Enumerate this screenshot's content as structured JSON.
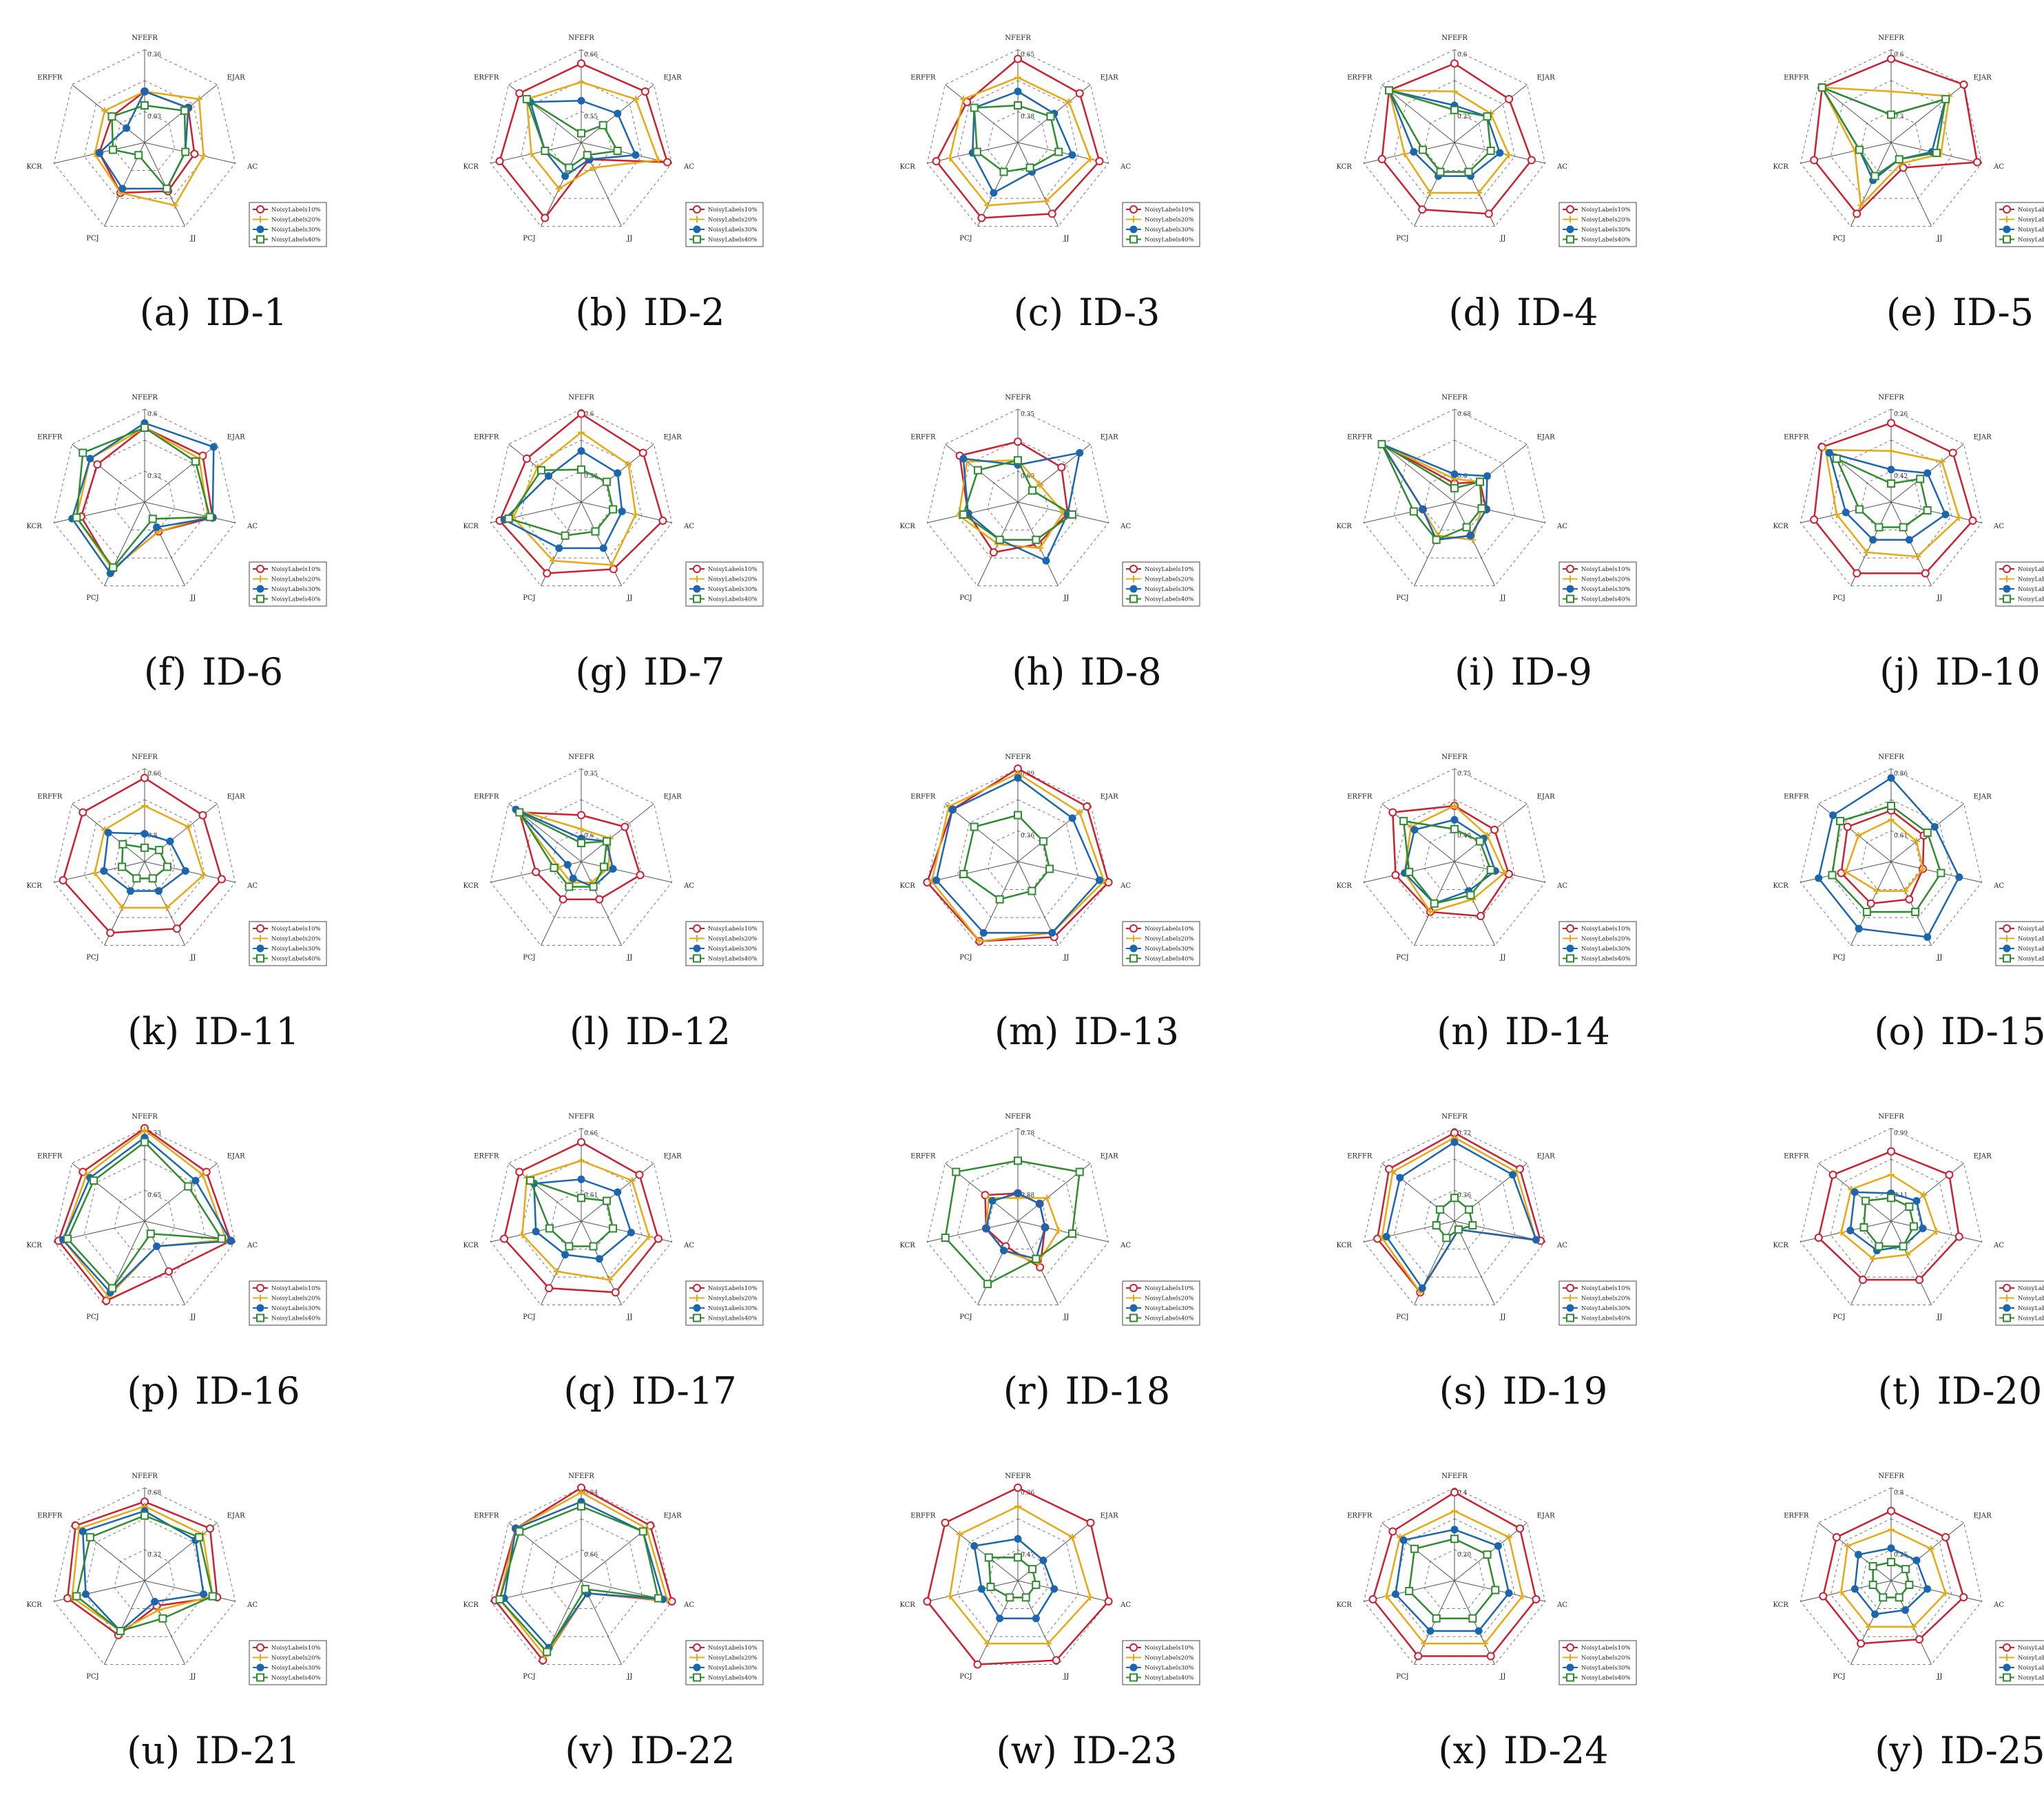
{
  "axes": [
    "NFEFR",
    "EJAR",
    "AC",
    "JJ",
    "PCJ",
    "KCR",
    "ERFFR"
  ],
  "legend": [
    "NoisyLabels10%",
    "NoisyLabels20%",
    "NoisyLabels30%",
    "NoisyLabels40%"
  ],
  "colors": [
    "#cc1f2f",
    "#e8a812",
    "#1a66b0",
    "#2e8b2e"
  ],
  "markers": [
    "circle-open",
    "plus",
    "circle-filled",
    "square-open"
  ],
  "chart_data": [
    {
      "type": "radar",
      "letter": "(a)",
      "id": "ID-1",
      "scale": [
        "0.36",
        "0.03"
      ],
      "series": [
        [
          0.55,
          0.6,
          0.55,
          0.58,
          0.6,
          0.5,
          0.45
        ],
        [
          0.55,
          0.75,
          0.65,
          0.75,
          0.6,
          0.55,
          0.55
        ],
        [
          0.55,
          0.6,
          0.45,
          0.55,
          0.55,
          0.5,
          0.25
        ],
        [
          0.4,
          0.55,
          0.45,
          0.55,
          0.15,
          0.35,
          0.45
        ]
      ]
    },
    {
      "type": "radar",
      "letter": "(b)",
      "id": "ID-2",
      "scale": [
        "0.66",
        "0.55"
      ],
      "series": [
        [
          0.85,
          0.88,
          0.95,
          0.2,
          0.9,
          0.9,
          0.85
        ],
        [
          0.65,
          0.75,
          0.85,
          0.3,
          0.55,
          0.55,
          0.75
        ],
        [
          0.45,
          0.5,
          0.6,
          0.2,
          0.4,
          0.4,
          0.7
        ],
        [
          0.1,
          0.3,
          0.4,
          0.15,
          0.3,
          0.4,
          0.75
        ]
      ]
    },
    {
      "type": "radar",
      "letter": "(c)",
      "id": "ID-3",
      "scale": [
        "0.65",
        "0.38"
      ],
      "series": [
        [
          0.9,
          0.85,
          0.9,
          0.85,
          0.9,
          0.9,
          0.7
        ],
        [
          0.7,
          0.7,
          0.8,
          0.7,
          0.75,
          0.75,
          0.75
        ],
        [
          0.55,
          0.5,
          0.6,
          0.35,
          0.6,
          0.5,
          0.6
        ],
        [
          0.4,
          0.45,
          0.45,
          0.3,
          0.35,
          0.45,
          0.6
        ]
      ]
    },
    {
      "type": "radar",
      "letter": "(d)",
      "id": "ID-4",
      "scale": [
        "0.6",
        "0.25"
      ],
      "series": [
        [
          0.85,
          0.75,
          0.85,
          0.85,
          0.8,
          0.8,
          0.9
        ],
        [
          0.55,
          0.5,
          0.6,
          0.6,
          0.6,
          0.55,
          0.9
        ],
        [
          0.4,
          0.45,
          0.5,
          0.4,
          0.4,
          0.45,
          0.9
        ],
        [
          0.35,
          0.45,
          0.4,
          0.35,
          0.35,
          0.35,
          0.9
        ]
      ]
    },
    {
      "type": "radar",
      "letter": "(e)",
      "id": "ID-5",
      "scale": [
        "0.6",
        "0.3"
      ],
      "series": [
        [
          0.9,
          1.0,
          0.95,
          0.3,
          0.85,
          0.85,
          0.95
        ],
        [
          0.55,
          0.8,
          0.55,
          0.25,
          0.75,
          0.4,
          0.95
        ],
        [
          0.3,
          0.75,
          0.45,
          0.2,
          0.45,
          0.35,
          0.95
        ],
        [
          0.3,
          0.75,
          0.5,
          0.2,
          0.4,
          0.35,
          0.95
        ]
      ]
    },
    {
      "type": "radar",
      "letter": "(f)",
      "id": "ID-6",
      "scale": [
        "0.6",
        "0.32"
      ],
      "series": [
        [
          0.8,
          0.8,
          0.75,
          0.35,
          0.8,
          0.7,
          0.65
        ],
        [
          0.8,
          0.75,
          0.7,
          0.35,
          0.8,
          0.75,
          0.75
        ],
        [
          0.85,
          0.95,
          0.75,
          0.3,
          0.85,
          0.8,
          0.75
        ],
        [
          0.8,
          0.7,
          0.72,
          0.2,
          0.78,
          0.75,
          0.85
        ]
      ]
    },
    {
      "type": "radar",
      "letter": "(g)",
      "id": "ID-7",
      "scale": [
        "0.6",
        "0.38"
      ],
      "series": [
        [
          0.95,
          0.85,
          0.9,
          0.8,
          0.85,
          0.9,
          0.75
        ],
        [
          0.75,
          0.65,
          0.6,
          0.75,
          0.7,
          0.75,
          0.6
        ],
        [
          0.55,
          0.5,
          0.45,
          0.55,
          0.55,
          0.85,
          0.45
        ],
        [
          0.35,
          0.35,
          0.35,
          0.35,
          0.4,
          0.8,
          0.55
        ]
      ]
    },
    {
      "type": "radar",
      "letter": "(h)",
      "id": "ID-8",
      "scale": [
        "0.35",
        "0.60"
      ],
      "series": [
        [
          0.65,
          0.6,
          0.55,
          0.5,
          0.6,
          0.55,
          0.8
        ],
        [
          0.45,
          0.3,
          0.5,
          0.55,
          0.5,
          0.65,
          0.7
        ],
        [
          0.4,
          0.85,
          0.55,
          0.7,
          0.45,
          0.55,
          0.75
        ],
        [
          0.45,
          0.2,
          0.6,
          0.45,
          0.45,
          0.6,
          0.55
        ]
      ]
    },
    {
      "type": "radar",
      "letter": "(i)",
      "id": "ID-9",
      "scale": [
        "0.68",
        "0.6"
      ],
      "series": [
        [
          0.2,
          0.35,
          0.35,
          0.4,
          0.45,
          0.35,
          1.0
        ],
        [
          0.25,
          0.35,
          0.3,
          0.45,
          0.4,
          0.35,
          0.98
        ],
        [
          0.3,
          0.45,
          0.35,
          0.4,
          0.45,
          0.35,
          1.0
        ],
        [
          0.15,
          0.35,
          0.3,
          0.3,
          0.45,
          0.45,
          1.0
        ]
      ]
    },
    {
      "type": "radar",
      "letter": "(j)",
      "id": "ID-10",
      "scale": [
        "0.26",
        "0.42"
      ],
      "series": [
        [
          0.85,
          0.85,
          0.9,
          0.85,
          0.85,
          0.85,
          0.95
        ],
        [
          0.55,
          0.7,
          0.75,
          0.65,
          0.6,
          0.6,
          0.9
        ],
        [
          0.35,
          0.5,
          0.6,
          0.45,
          0.45,
          0.5,
          0.85
        ],
        [
          0.2,
          0.4,
          0.4,
          0.3,
          0.3,
          0.35,
          0.75
        ]
      ]
    },
    {
      "type": "radar",
      "letter": "(k)",
      "id": "ID-11",
      "scale": [
        "0.66",
        "0.8"
      ],
      "series": [
        [
          0.9,
          0.8,
          0.85,
          0.8,
          0.85,
          0.9,
          0.85
        ],
        [
          0.6,
          0.6,
          0.65,
          0.55,
          0.55,
          0.55,
          0.55
        ],
        [
          0.3,
          0.35,
          0.45,
          0.35,
          0.35,
          0.45,
          0.5
        ],
        [
          0.15,
          0.2,
          0.25,
          0.2,
          0.2,
          0.25,
          0.3
        ]
      ]
    },
    {
      "type": "radar",
      "letter": "(l)",
      "id": "ID-12",
      "scale": [
        "0.35",
        "0.6"
      ],
      "series": [
        [
          0.5,
          0.6,
          0.65,
          0.45,
          0.45,
          0.5,
          0.85
        ],
        [
          0.35,
          0.4,
          0.3,
          0.25,
          0.25,
          0.25,
          0.9
        ],
        [
          0.25,
          0.35,
          0.35,
          0.3,
          0.2,
          0.15,
          0.9
        ],
        [
          0.2,
          0.35,
          0.25,
          0.3,
          0.3,
          0.3,
          0.85
        ]
      ]
    },
    {
      "type": "radar",
      "letter": "(m)",
      "id": "ID-13",
      "scale": [
        "0.89",
        "0.36"
      ],
      "series": [
        [
          1.0,
          0.95,
          1.0,
          0.9,
          0.95,
          1.0,
          0.9
        ],
        [
          0.95,
          0.85,
          0.95,
          0.85,
          0.95,
          0.95,
          0.95
        ],
        [
          0.9,
          0.75,
          0.9,
          0.85,
          0.85,
          0.9,
          0.9
        ],
        [
          0.5,
          0.35,
          0.35,
          0.35,
          0.45,
          0.6,
          0.6
        ]
      ]
    },
    {
      "type": "radar",
      "letter": "(n)",
      "id": "ID-14",
      "scale": [
        "0.75",
        "0.40"
      ],
      "series": [
        [
          0.6,
          0.55,
          0.6,
          0.65,
          0.6,
          0.65,
          0.85
        ],
        [
          0.6,
          0.45,
          0.55,
          0.45,
          0.6,
          0.55,
          0.6
        ],
        [
          0.45,
          0.4,
          0.45,
          0.35,
          0.5,
          0.55,
          0.55
        ],
        [
          0.35,
          0.35,
          0.4,
          0.4,
          0.5,
          0.5,
          0.7
        ]
      ]
    },
    {
      "type": "radar",
      "letter": "(o)",
      "id": "ID-15",
      "scale": [
        "0.86",
        "0.61"
      ],
      "series": [
        [
          0.55,
          0.45,
          0.35,
          0.45,
          0.5,
          0.55,
          0.6
        ],
        [
          0.45,
          0.35,
          0.35,
          0.35,
          0.35,
          0.5,
          0.45
        ],
        [
          0.9,
          0.6,
          0.75,
          0.9,
          0.8,
          0.8,
          0.8
        ],
        [
          0.6,
          0.5,
          0.55,
          0.6,
          0.6,
          0.65,
          0.7
        ]
      ]
    },
    {
      "type": "radar",
      "letter": "(p)",
      "id": "ID-16",
      "scale": [
        "0.33",
        "0.65"
      ],
      "series": [
        [
          1.0,
          0.85,
          0.95,
          0.6,
          0.95,
          0.95,
          0.85
        ],
        [
          0.98,
          0.8,
          0.9,
          0.3,
          0.9,
          0.9,
          0.8
        ],
        [
          0.9,
          0.7,
          0.95,
          0.3,
          0.85,
          0.9,
          0.75
        ],
        [
          0.85,
          0.6,
          0.85,
          0.15,
          0.8,
          0.85,
          0.7
        ]
      ]
    },
    {
      "type": "radar",
      "letter": "(q)",
      "id": "ID-17",
      "scale": [
        "0.66",
        "0.61"
      ],
      "series": [
        [
          0.85,
          0.8,
          0.85,
          0.85,
          0.8,
          0.85,
          0.85
        ],
        [
          0.65,
          0.7,
          0.75,
          0.7,
          0.6,
          0.65,
          0.75
        ],
        [
          0.45,
          0.5,
          0.55,
          0.45,
          0.4,
          0.5,
          0.65
        ],
        [
          0.25,
          0.35,
          0.35,
          0.3,
          0.3,
          0.35,
          0.7
        ]
      ]
    },
    {
      "type": "radar",
      "letter": "(r)",
      "id": "ID-18",
      "scale": [
        "0.78",
        "0.88"
      ],
      "series": [
        [
          0.3,
          0.3,
          0.3,
          0.55,
          0.3,
          0.35,
          0.45
        ],
        [
          0.25,
          0.4,
          0.45,
          0.5,
          0.35,
          0.35,
          0.4
        ],
        [
          0.3,
          0.3,
          0.3,
          0.45,
          0.35,
          0.35,
          0.35
        ],
        [
          0.65,
          0.85,
          0.6,
          0.45,
          0.75,
          0.8,
          0.85
        ]
      ]
    },
    {
      "type": "radar",
      "letter": "(s)",
      "id": "ID-19",
      "scale": [
        "0.72",
        "0.36"
      ],
      "series": [
        [
          0.95,
          0.9,
          0.95,
          0.1,
          0.85,
          0.85,
          0.9
        ],
        [
          0.9,
          0.85,
          0.9,
          0.1,
          0.85,
          0.8,
          0.85
        ],
        [
          0.85,
          0.8,
          0.9,
          0.1,
          0.8,
          0.75,
          0.75
        ],
        [
          0.25,
          0.2,
          0.2,
          0.1,
          0.2,
          0.2,
          0.2
        ]
      ]
    },
    {
      "type": "radar",
      "letter": "(t)",
      "id": "ID-20",
      "scale": [
        "0.99",
        "0.11"
      ],
      "series": [
        [
          0.75,
          0.8,
          0.75,
          0.7,
          0.7,
          0.8,
          0.8
        ],
        [
          0.5,
          0.45,
          0.5,
          0.4,
          0.45,
          0.55,
          0.55
        ],
        [
          0.3,
          0.35,
          0.35,
          0.3,
          0.35,
          0.45,
          0.5
        ],
        [
          0.25,
          0.25,
          0.25,
          0.3,
          0.3,
          0.3,
          0.35
        ]
      ]
    },
    {
      "type": "radar",
      "letter": "(u)",
      "id": "ID-21",
      "scale": [
        "0.68",
        "0.32"
      ],
      "series": [
        [
          0.85,
          0.9,
          0.8,
          0.3,
          0.65,
          0.85,
          0.95
        ],
        [
          0.8,
          0.8,
          0.75,
          0.35,
          0.6,
          0.8,
          0.9
        ],
        [
          0.75,
          0.7,
          0.65,
          0.25,
          0.6,
          0.65,
          0.85
        ],
        [
          0.7,
          0.75,
          0.75,
          0.45,
          0.6,
          0.75,
          0.75
        ]
      ]
    },
    {
      "type": "radar",
      "letter": "(v)",
      "id": "ID-22",
      "scale": [
        "0.84",
        "0.66"
      ],
      "series": [
        [
          1.0,
          0.95,
          1.0,
          0.15,
          0.95,
          0.95,
          0.9
        ],
        [
          0.95,
          0.9,
          0.95,
          0.15,
          0.9,
          0.9,
          0.9
        ],
        [
          0.85,
          0.85,
          0.9,
          0.15,
          0.8,
          0.85,
          0.9
        ],
        [
          0.8,
          0.85,
          0.85,
          0.1,
          0.85,
          0.9,
          0.85
        ]
      ]
    },
    {
      "type": "radar",
      "letter": "(w)",
      "id": "ID-23",
      "scale": [
        "0.36",
        "0.47"
      ],
      "series": [
        [
          1.0,
          1.0,
          1.0,
          0.95,
          1.0,
          1.0,
          1.0
        ],
        [
          0.8,
          0.75,
          0.8,
          0.75,
          0.75,
          0.75,
          0.8
        ],
        [
          0.45,
          0.35,
          0.4,
          0.45,
          0.45,
          0.4,
          0.6
        ],
        [
          0.25,
          0.2,
          0.2,
          0.2,
          0.2,
          0.3,
          0.4
        ]
      ]
    },
    {
      "type": "radar",
      "letter": "(x)",
      "id": "ID-24",
      "scale": [
        "0.4",
        "0.20"
      ],
      "series": [
        [
          0.95,
          0.9,
          0.9,
          0.9,
          0.9,
          0.9,
          0.85
        ],
        [
          0.75,
          0.75,
          0.75,
          0.75,
          0.75,
          0.75,
          0.75
        ],
        [
          0.55,
          0.6,
          0.6,
          0.6,
          0.6,
          0.65,
          0.7
        ],
        [
          0.45,
          0.45,
          0.45,
          0.45,
          0.45,
          0.5,
          0.55
        ]
      ]
    },
    {
      "type": "radar",
      "letter": "(y)",
      "id": "ID-25",
      "scale": [
        "0.8",
        "0.25"
      ],
      "series": [
        [
          0.75,
          0.75,
          0.8,
          0.7,
          0.75,
          0.75,
          0.75
        ],
        [
          0.55,
          0.55,
          0.6,
          0.55,
          0.55,
          0.55,
          0.6
        ],
        [
          0.35,
          0.35,
          0.4,
          0.35,
          0.4,
          0.4,
          0.45
        ],
        [
          0.2,
          0.2,
          0.2,
          0.2,
          0.2,
          0.2,
          0.25
        ]
      ]
    }
  ]
}
